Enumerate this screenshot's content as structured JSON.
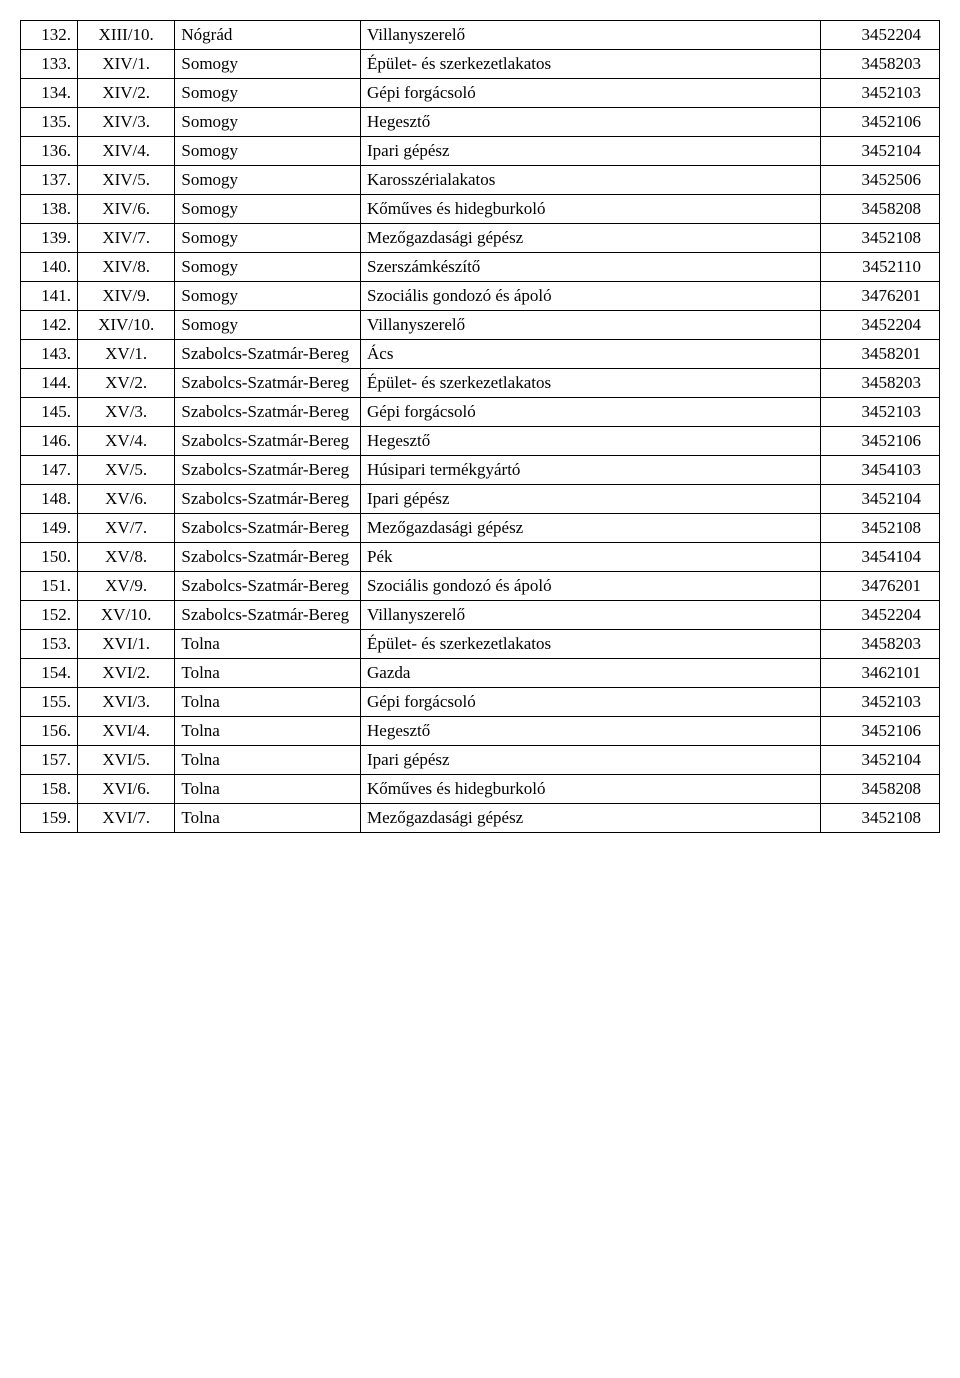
{
  "table": {
    "columns": [
      {
        "width_pct": 6.2
      },
      {
        "width_pct": 10.6
      },
      {
        "width_pct": 20.2
      },
      {
        "width_pct": 50.0
      },
      {
        "width_pct": 13.0
      }
    ],
    "font_family": "Times New Roman",
    "font_size_pt": 13,
    "border_color": "#000000",
    "background_color": "#ffffff",
    "text_color": "#000000",
    "rows": [
      {
        "n": "132.",
        "code": "XIII/10.",
        "region": "Nógrád",
        "occupation": "Villanyszerelő",
        "id": "3452204"
      },
      {
        "n": "133.",
        "code": "XIV/1.",
        "region": "Somogy",
        "occupation": "Épület- és szerkezetlakatos",
        "id": "3458203"
      },
      {
        "n": "134.",
        "code": "XIV/2.",
        "region": "Somogy",
        "occupation": "Gépi forgácsoló",
        "id": "3452103"
      },
      {
        "n": "135.",
        "code": "XIV/3.",
        "region": "Somogy",
        "occupation": "Hegesztő",
        "id": "3452106"
      },
      {
        "n": "136.",
        "code": "XIV/4.",
        "region": "Somogy",
        "occupation": "Ipari gépész",
        "id": "3452104"
      },
      {
        "n": "137.",
        "code": "XIV/5.",
        "region": "Somogy",
        "occupation": "Karosszérialakatos",
        "id": "3452506"
      },
      {
        "n": "138.",
        "code": "XIV/6.",
        "region": "Somogy",
        "occupation": "Kőműves és hidegburkoló",
        "id": "3458208"
      },
      {
        "n": "139.",
        "code": "XIV/7.",
        "region": "Somogy",
        "occupation": "Mezőgazdasági gépész",
        "id": "3452108"
      },
      {
        "n": "140.",
        "code": "XIV/8.",
        "region": "Somogy",
        "occupation": "Szerszámkészítő",
        "id": "3452110"
      },
      {
        "n": "141.",
        "code": "XIV/9.",
        "region": "Somogy",
        "occupation": "Szociális gondozó és ápoló",
        "id": "3476201"
      },
      {
        "n": "142.",
        "code": "XIV/10.",
        "region": "Somogy",
        "occupation": "Villanyszerelő",
        "id": "3452204"
      },
      {
        "n": "143.",
        "code": "XV/1.",
        "region": "Szabolcs-Szatmár-Bereg",
        "occupation": "Ács",
        "id": "3458201"
      },
      {
        "n": "144.",
        "code": "XV/2.",
        "region": "Szabolcs-Szatmár-Bereg",
        "occupation": "Épület- és szerkezetlakatos",
        "id": "3458203"
      },
      {
        "n": "145.",
        "code": "XV/3.",
        "region": "Szabolcs-Szatmár-Bereg",
        "occupation": "Gépi forgácsoló",
        "id": "3452103"
      },
      {
        "n": "146.",
        "code": "XV/4.",
        "region": "Szabolcs-Szatmár-Bereg",
        "occupation": "Hegesztő",
        "id": "3452106"
      },
      {
        "n": "147.",
        "code": "XV/5.",
        "region": "Szabolcs-Szatmár-Bereg",
        "occupation": "Húsipari termékgyártó",
        "id": "3454103"
      },
      {
        "n": "148.",
        "code": "XV/6.",
        "region": "Szabolcs-Szatmár-Bereg",
        "occupation": "Ipari gépész",
        "id": "3452104"
      },
      {
        "n": "149.",
        "code": "XV/7.",
        "region": "Szabolcs-Szatmár-Bereg",
        "occupation": "Mezőgazdasági gépész",
        "id": "3452108"
      },
      {
        "n": "150.",
        "code": "XV/8.",
        "region": "Szabolcs-Szatmár-Bereg",
        "occupation": "Pék",
        "id": "3454104"
      },
      {
        "n": "151.",
        "code": "XV/9.",
        "region": "Szabolcs-Szatmár-Bereg",
        "occupation": "Szociális gondozó és ápoló",
        "id": "3476201"
      },
      {
        "n": "152.",
        "code": "XV/10.",
        "region": "Szabolcs-Szatmár-Bereg",
        "occupation": "Villanyszerelő",
        "id": "3452204"
      },
      {
        "n": "153.",
        "code": "XVI/1.",
        "region": "Tolna",
        "occupation": "Épület- és szerkezetlakatos",
        "id": "3458203"
      },
      {
        "n": "154.",
        "code": "XVI/2.",
        "region": "Tolna",
        "occupation": "Gazda",
        "id": "3462101"
      },
      {
        "n": "155.",
        "code": "XVI/3.",
        "region": "Tolna",
        "occupation": "Gépi forgácsoló",
        "id": "3452103"
      },
      {
        "n": "156.",
        "code": "XVI/4.",
        "region": "Tolna",
        "occupation": "Hegesztő",
        "id": "3452106"
      },
      {
        "n": "157.",
        "code": "XVI/5.",
        "region": "Tolna",
        "occupation": "Ipari gépész",
        "id": "3452104"
      },
      {
        "n": "158.",
        "code": "XVI/6.",
        "region": "Tolna",
        "occupation": "Kőműves és hidegburkoló",
        "id": "3458208"
      },
      {
        "n": "159.",
        "code": "XVI/7.",
        "region": "Tolna",
        "occupation": "Mezőgazdasági gépész",
        "id": "3452108"
      }
    ]
  }
}
